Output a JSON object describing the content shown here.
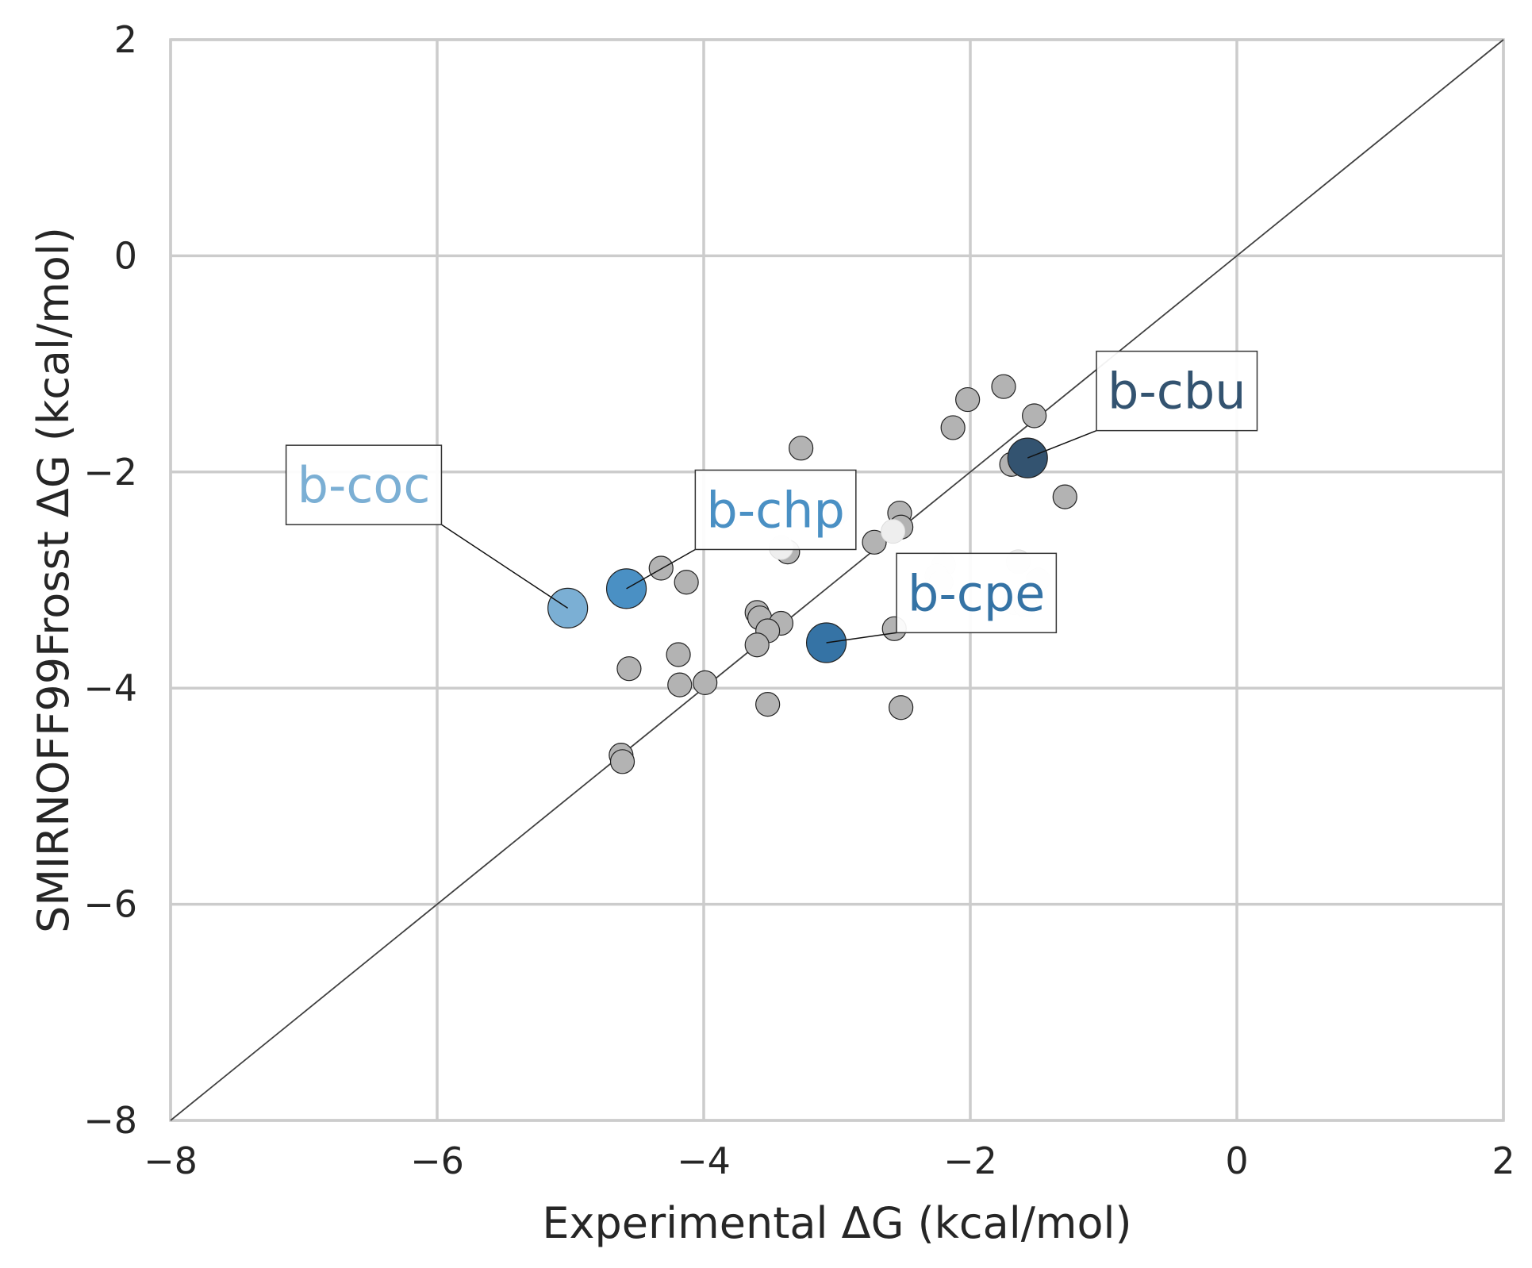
{
  "chart_data": {
    "type": "scatter",
    "title": "",
    "xlabel": "Experimental ΔG (kcal/mol)",
    "ylabel": "SMIRNOFF99Frosst ΔG (kcal/mol)",
    "xlim": [
      -8,
      2
    ],
    "ylim": [
      -8,
      2
    ],
    "xticks": [
      -8,
      -6,
      -4,
      -2,
      0,
      2
    ],
    "yticks": [
      -8,
      -6,
      -4,
      -2,
      0,
      2
    ],
    "xtick_labels": [
      "−8",
      "−6",
      "−4",
      "−2",
      "0",
      "2"
    ],
    "ytick_labels": [
      "−8",
      "−6",
      "−4",
      "−2",
      "0",
      "2"
    ],
    "grid": true,
    "reference_line": {
      "type": "identity",
      "from": [
        -8,
        -8
      ],
      "to": [
        2,
        2
      ]
    },
    "colors": {
      "grid": "#cccccc",
      "background_points": "#b3b3b3",
      "faded_points": "#eeeeee",
      "b-coc": "#7bafd4",
      "b-chp": "#4a90c4",
      "b-cpe": "#3573a5",
      "b-cbu": "#335370"
    },
    "series": [
      {
        "role": "other-guests",
        "color": "#b3b3b3",
        "points": [
          [
            -1.75,
            -1.21
          ],
          [
            -2.02,
            -1.33
          ],
          [
            -1.52,
            -1.48
          ],
          [
            -2.13,
            -1.59
          ],
          [
            -1.69,
            -1.93
          ],
          [
            -1.29,
            -2.23
          ],
          [
            -3.27,
            -1.78
          ],
          [
            -2.53,
            -2.38
          ],
          [
            -2.52,
            -2.51
          ],
          [
            -2.72,
            -2.65
          ],
          [
            -3.37,
            -2.74
          ],
          [
            -4.32,
            -2.89
          ],
          [
            -4.13,
            -3.02
          ],
          [
            -3.6,
            -3.3
          ],
          [
            -3.58,
            -3.35
          ],
          [
            -3.42,
            -3.4
          ],
          [
            -3.52,
            -3.47
          ],
          [
            -3.6,
            -3.6
          ],
          [
            -2.57,
            -3.45
          ],
          [
            -4.19,
            -3.69
          ],
          [
            -4.56,
            -3.82
          ],
          [
            -4.18,
            -3.97
          ],
          [
            -3.99,
            -3.95
          ],
          [
            -3.52,
            -4.15
          ],
          [
            -2.52,
            -4.18
          ],
          [
            -4.62,
            -4.62
          ],
          [
            -4.61,
            -4.68
          ]
        ]
      },
      {
        "role": "faded-guests",
        "color": "#eeeeee",
        "points": [
          [
            -3.0,
            -2.38
          ],
          [
            -2.58,
            -2.55
          ],
          [
            -3.42,
            -2.7
          ],
          [
            -2.2,
            -2.86
          ],
          [
            -2.25,
            -2.96
          ],
          [
            -2.22,
            -3.02
          ],
          [
            -1.64,
            -2.83
          ],
          [
            -1.49,
            -3.0
          ],
          [
            -1.67,
            -3.21
          ],
          [
            -1.59,
            -3.23
          ]
        ]
      },
      {
        "name": "b-coc",
        "color": "#7bafd4",
        "points": [
          [
            -5.02,
            -3.26
          ]
        ]
      },
      {
        "name": "b-chp",
        "color": "#4a90c4",
        "points": [
          [
            -4.58,
            -3.08
          ]
        ]
      },
      {
        "name": "b-cpe",
        "color": "#3573a5",
        "points": [
          [
            -3.08,
            -3.58
          ]
        ]
      },
      {
        "name": "b-cbu",
        "color": "#335370",
        "points": [
          [
            -1.57,
            -1.87
          ]
        ]
      }
    ],
    "annotations": [
      {
        "text": "b-coc",
        "color": "#7bafd4",
        "box_at": [
          -7.05,
          -2.12
        ],
        "points_to": [
          -5.02,
          -3.26
        ]
      },
      {
        "text": "b-chp",
        "color": "#4a90c4",
        "box_at": [
          -3.98,
          -2.35
        ],
        "points_to": [
          -4.58,
          -3.08
        ]
      },
      {
        "text": "b-cpe",
        "color": "#3573a5",
        "box_at": [
          -2.47,
          -3.12
        ],
        "points_to": [
          -3.08,
          -3.58
        ]
      },
      {
        "text": "b-cbu",
        "color": "#335370",
        "box_at": [
          -0.97,
          -1.25
        ],
        "points_to": [
          -1.57,
          -1.87
        ]
      }
    ]
  }
}
